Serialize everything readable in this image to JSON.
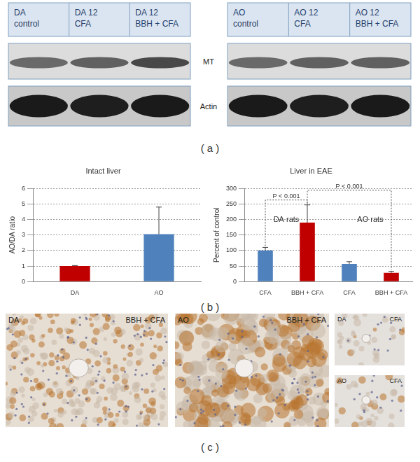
{
  "panels": [
    "( a )",
    "( b )",
    "( c )"
  ],
  "blot": {
    "groups": [
      {
        "lanes": [
          [
            "DA",
            "control"
          ],
          [
            "DA 12",
            "CFA"
          ],
          [
            "DA 12",
            "BBH + CFA"
          ]
        ]
      },
      {
        "lanes": [
          [
            "AO",
            "control"
          ],
          [
            "AO 12",
            "CFA"
          ],
          [
            "AO 12",
            "BBH + CFA"
          ]
        ]
      }
    ],
    "bands": [
      "MT",
      "Actin"
    ]
  },
  "chart_data": [
    {
      "type": "bar",
      "title": "Intact liver",
      "ylabel": "AO/DA ratio",
      "categories": [
        "DA",
        "AO"
      ],
      "values": [
        1,
        3.05
      ],
      "errors": [
        0.03,
        1.75
      ],
      "colors": [
        "#c00000",
        "#4f81bd"
      ],
      "ylim": [
        0,
        6
      ],
      "yticks": [
        0,
        1,
        2,
        3,
        4,
        5,
        6
      ],
      "grid": true
    },
    {
      "type": "bar",
      "title": "Liver in EAE",
      "ylabel": "Percent of control",
      "categories": [
        "CFA",
        "BBH + CFA",
        "CFA",
        "BBH + CFA"
      ],
      "values": [
        100,
        190,
        57,
        28
      ],
      "errors": [
        10,
        57,
        7,
        5
      ],
      "colors": [
        "#4f81bd",
        "#c00000",
        "#4f81bd",
        "#c00000"
      ],
      "ylim": [
        0,
        300
      ],
      "yticks": [
        0,
        50,
        100,
        150,
        200,
        250,
        300
      ],
      "grid": true,
      "groups": [
        "DA rats",
        "AO rats"
      ],
      "comparisons": [
        {
          "between": [
            0,
            1
          ],
          "label": "P < 0.001"
        },
        {
          "between": [
            1,
            3
          ],
          "label": "P < 0.001"
        }
      ]
    }
  ],
  "micrographs": [
    {
      "strain": "DA",
      "treatment": "BBH + CFA"
    },
    {
      "strain": "AO",
      "treatment": "BBH + CFA"
    },
    {
      "strain": "DA",
      "treatment": "CFA"
    },
    {
      "strain": "AO",
      "treatment": "CFA"
    }
  ]
}
